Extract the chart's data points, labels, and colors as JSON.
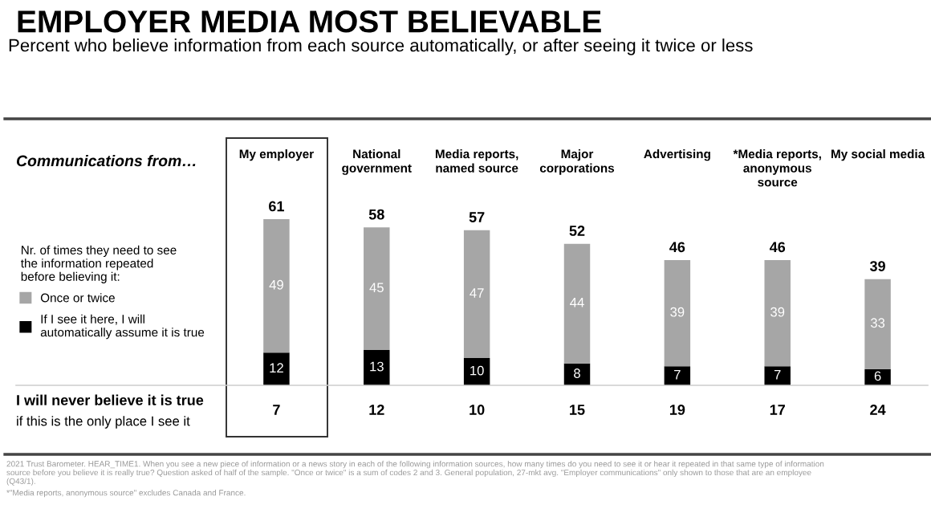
{
  "chart_data": {
    "type": "bar",
    "stacked": true,
    "title": "EMPLOYER MEDIA MOST BELIEVABLE",
    "subtitle": "Percent who believe information from each source automatically, or after seeing it twice or less",
    "xlabel": "Communications from…",
    "legend_title": "Nr. of times they need to see\nthe information repeated\nbefore believing it:",
    "categories": [
      "My employer",
      "National\ngovernment",
      "Media reports,\nnamed source",
      "Major\ncorporations",
      "Advertising",
      "*Media reports,\nanonymous\nsource",
      "My social media"
    ],
    "series": [
      {
        "name": "If I see it here, I will\nautomatically assume it is true",
        "color": "#000000",
        "values": [
          12,
          13,
          10,
          8,
          7,
          7,
          6
        ]
      },
      {
        "name": "Once or twice",
        "color": "#a6a6a6",
        "values": [
          49,
          45,
          47,
          44,
          39,
          39,
          33
        ]
      }
    ],
    "totals": [
      "61",
      "58",
      "57",
      "52",
      "46",
      "46",
      "39"
    ],
    "data_labels": true,
    "legend": "left",
    "annotations": [
      "I will never believe it is true",
      "if this is the only place I see it",
      "7",
      "12",
      "10",
      "15",
      "19",
      "17",
      "24",
      "2021 Trust Barometer. HEAR_TIME1. When you see a new piece of information or a news story in each of the following information sources, how many times do you need to see it or hear it repeated in that same type of information source before you believe it is really true? Question asked of half of the sample. \"Once or twice\" is a sum of codes 2 and 3. General population, 27-mkt avg. \"Employer communications\" only shown to those that are an employee (Q43/1).",
      "*\"Media reports, anonymous source\" excludes Canada and France."
    ]
  }
}
